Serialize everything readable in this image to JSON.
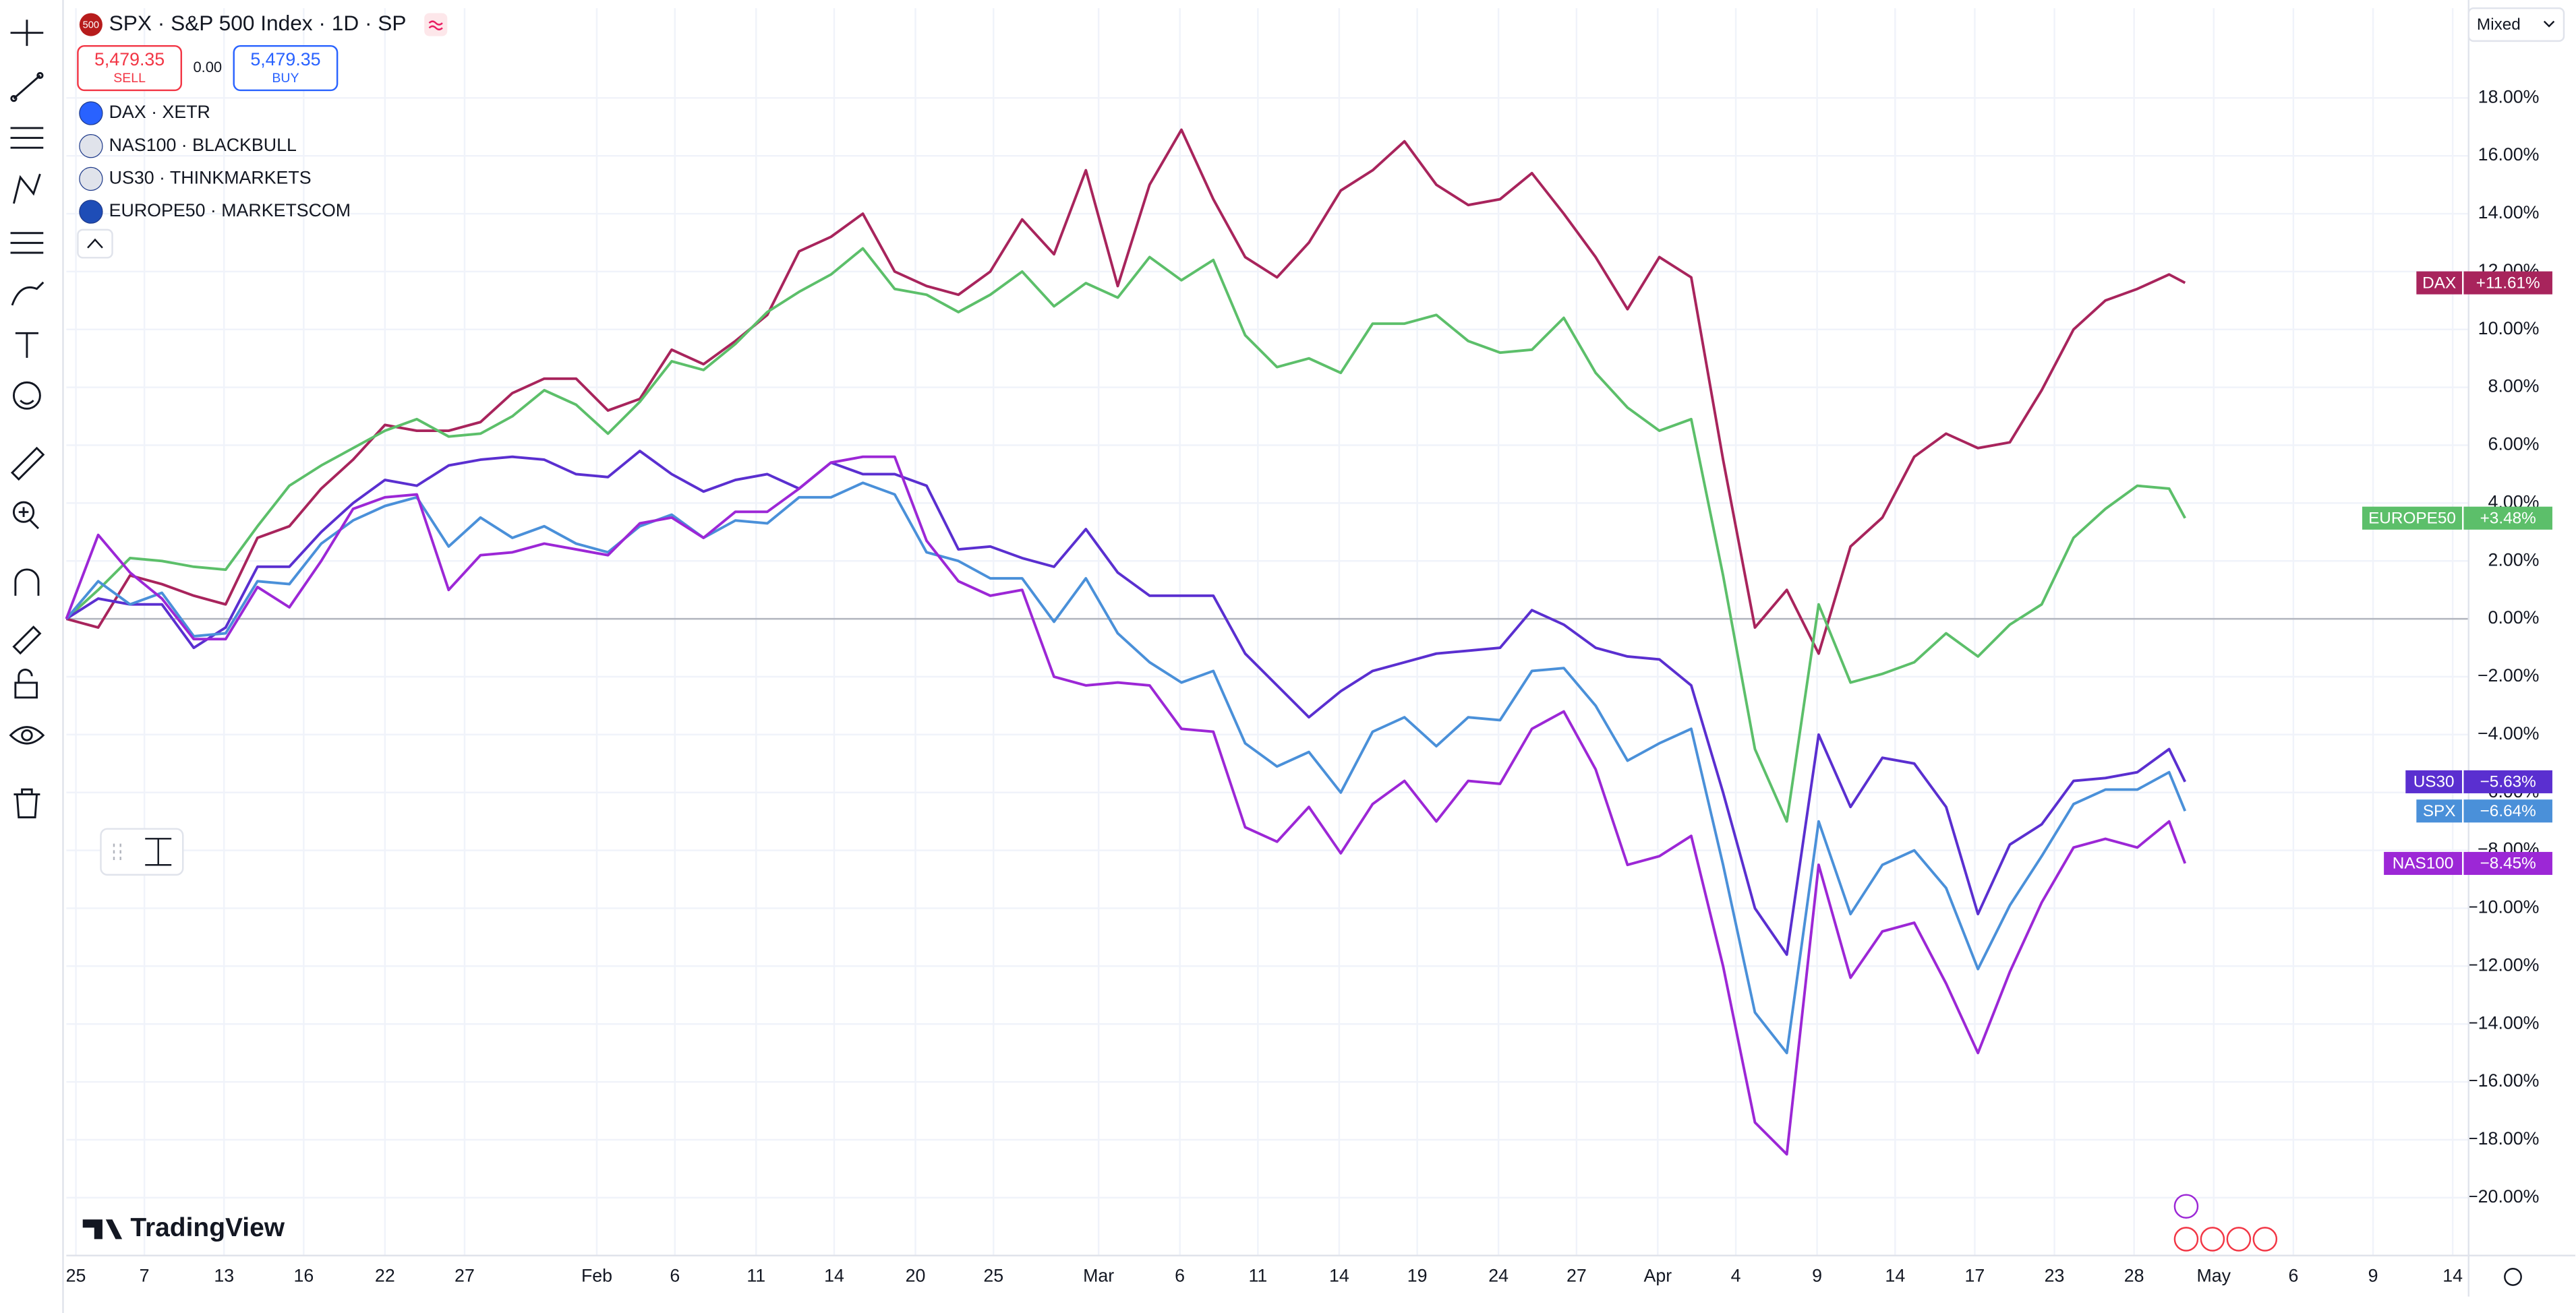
{
  "header": {
    "symbol": "SPX · S&P 500 Index · 1D · SP",
    "badge": "500",
    "sell_price": "5,479.35",
    "sell": "SELL",
    "spread": "0.00",
    "buy_price": "5,479.35",
    "buy": "BUY"
  },
  "legend_items": [
    "DAX · XETR",
    "NAS100 · BLACKBULL",
    "US30 · THINKMARKETS",
    "EUROPE50 · MARKETSCOM"
  ],
  "scale_mode": "Mixed",
  "watermark": "TradingView",
  "chart_data": {
    "type": "line",
    "x": [
      0,
      2,
      4,
      6,
      8,
      10,
      12,
      14,
      16,
      18,
      20,
      22,
      24,
      26,
      28,
      30,
      32,
      34,
      36,
      38,
      40,
      42,
      44,
      46,
      48,
      50,
      52,
      54,
      56,
      58,
      60,
      62,
      64,
      66,
      68,
      70,
      72,
      74,
      76,
      78,
      80,
      82,
      84,
      86,
      88,
      90,
      92,
      94,
      96,
      98,
      100,
      102,
      104,
      106,
      108,
      110,
      112,
      114,
      116,
      118,
      120,
      122,
      124,
      126,
      128,
      130,
      132,
      133
    ],
    "xlim": [
      0,
      150.8
    ],
    "xticks": [
      {
        "value": 0.6,
        "label": "25"
      },
      {
        "value": 4.9,
        "label": "7"
      },
      {
        "value": 9.9,
        "label": "13"
      },
      {
        "value": 14.9,
        "label": "16"
      },
      {
        "value": 20,
        "label": "22"
      },
      {
        "value": 25,
        "label": "27"
      },
      {
        "value": 33.3,
        "label": "Feb"
      },
      {
        "value": 38.2,
        "label": "6"
      },
      {
        "value": 43.3,
        "label": "11"
      },
      {
        "value": 48.2,
        "label": "14"
      },
      {
        "value": 53.3,
        "label": "20"
      },
      {
        "value": 58.2,
        "label": "25"
      },
      {
        "value": 64.8,
        "label": "Mar"
      },
      {
        "value": 69.9,
        "label": "6"
      },
      {
        "value": 74.8,
        "label": "11"
      },
      {
        "value": 79.9,
        "label": "14"
      },
      {
        "value": 84.8,
        "label": "19"
      },
      {
        "value": 89.9,
        "label": "24"
      },
      {
        "value": 94.8,
        "label": "27"
      },
      {
        "value": 99.9,
        "label": "Apr"
      },
      {
        "value": 104.8,
        "label": "4"
      },
      {
        "value": 109.9,
        "label": "9"
      },
      {
        "value": 114.8,
        "label": "14"
      },
      {
        "value": 119.8,
        "label": "17"
      },
      {
        "value": 124.8,
        "label": "23"
      },
      {
        "value": 129.8,
        "label": "28"
      },
      {
        "value": 134.8,
        "label": "May"
      },
      {
        "value": 139.8,
        "label": "6"
      },
      {
        "value": 144.8,
        "label": "9"
      },
      {
        "value": 149.8,
        "label": "14"
      }
    ],
    "ylim": [
      -22,
      21.1
    ],
    "yticks": [
      {
        "value": 18,
        "label": "18.00%"
      },
      {
        "value": 16,
        "label": "16.00%"
      },
      {
        "value": 14,
        "label": "14.00%"
      },
      {
        "value": 12,
        "label": "12.00%"
      },
      {
        "value": 10,
        "label": "10.00%"
      },
      {
        "value": 8,
        "label": "8.00%"
      },
      {
        "value": 6,
        "label": "6.00%"
      },
      {
        "value": 4,
        "label": "4.00%"
      },
      {
        "value": 2,
        "label": "2.00%"
      },
      {
        "value": 0,
        "label": "0.00%"
      },
      {
        "value": -2,
        "label": "−2.00%"
      },
      {
        "value": -4,
        "label": "−4.00%"
      },
      {
        "value": -6,
        "label": "−6.00%"
      },
      {
        "value": -8,
        "label": "−8.00%"
      },
      {
        "value": -10,
        "label": "−10.00%"
      },
      {
        "value": -12,
        "label": "−12.00%"
      },
      {
        "value": -14,
        "label": "−14.00%"
      },
      {
        "value": -16,
        "label": "−16.00%"
      },
      {
        "value": -18,
        "label": "−18.00%"
      },
      {
        "value": -20,
        "label": "−20.00%"
      }
    ],
    "grid": true,
    "series": [
      {
        "name": "DAX",
        "color": "#a8245c",
        "last_label": "+11.61%",
        "values": [
          0,
          -0.3,
          1.5,
          1.2,
          0.8,
          0.5,
          2.8,
          3.2,
          4.5,
          5.5,
          6.7,
          6.5,
          6.5,
          6.8,
          7.8,
          8.3,
          8.3,
          7.2,
          7.6,
          9.3,
          8.8,
          9.6,
          10.5,
          12.7,
          13.2,
          14.0,
          12.0,
          11.5,
          11.2,
          12.0,
          13.8,
          12.6,
          15.5,
          11.5,
          15.0,
          16.9,
          14.5,
          12.5,
          11.8,
          13.0,
          14.8,
          15.5,
          16.5,
          15.0,
          14.3,
          14.5,
          15.4,
          14.0,
          12.5,
          10.7,
          12.5,
          11.8,
          5.5,
          -0.3,
          1.0,
          -1.2,
          2.5,
          3.5,
          5.6,
          6.4,
          5.9,
          6.1,
          7.9,
          10.0,
          11.0,
          11.4,
          11.9,
          11.61
        ]
      },
      {
        "name": "EUROPE50",
        "color": "#5cbf6a",
        "last_label": "+3.48%",
        "values": [
          0,
          1.0,
          2.1,
          2.0,
          1.8,
          1.7,
          3.2,
          4.6,
          5.3,
          5.9,
          6.5,
          6.9,
          6.3,
          6.4,
          7.0,
          7.9,
          7.4,
          6.4,
          7.5,
          8.9,
          8.6,
          9.5,
          10.6,
          11.3,
          11.9,
          12.8,
          11.4,
          11.2,
          10.6,
          11.2,
          12.0,
          10.8,
          11.6,
          11.1,
          12.5,
          11.7,
          12.4,
          9.8,
          8.7,
          9.0,
          8.5,
          10.2,
          10.2,
          10.5,
          9.6,
          9.2,
          9.3,
          10.4,
          8.5,
          7.3,
          6.5,
          6.9,
          1.5,
          -4.5,
          -7.0,
          0.5,
          -2.2,
          -1.9,
          -1.5,
          -0.5,
          -1.3,
          -0.2,
          0.5,
          2.8,
          3.8,
          4.6,
          4.5,
          3.48
        ]
      },
      {
        "name": "US30",
        "color": "#5a2fd0",
        "last_label": "−5.63%",
        "values": [
          0,
          0.7,
          0.5,
          0.5,
          -1.0,
          -0.3,
          1.8,
          1.8,
          3.0,
          4.0,
          4.8,
          4.6,
          5.3,
          5.5,
          5.6,
          5.5,
          5.0,
          4.9,
          5.8,
          5.0,
          4.4,
          4.8,
          5.0,
          4.5,
          5.4,
          5.0,
          5.0,
          4.6,
          2.4,
          2.5,
          2.1,
          1.8,
          3.1,
          1.6,
          0.8,
          0.8,
          0.8,
          -1.2,
          -2.3,
          -3.4,
          -2.5,
          -1.8,
          -1.5,
          -1.2,
          -1.1,
          -1.0,
          0.3,
          -0.2,
          -1.0,
          -1.3,
          -1.4,
          -2.3,
          -6.0,
          -10.0,
          -11.6,
          -4.0,
          -6.5,
          -4.8,
          -5.0,
          -6.5,
          -10.2,
          -7.8,
          -7.1,
          -5.6,
          -5.5,
          -5.3,
          -4.5,
          -5.63
        ]
      },
      {
        "name": "SPX",
        "color": "#4a90d9",
        "last_label": "−6.64%",
        "values": [
          0,
          1.3,
          0.5,
          0.9,
          -0.6,
          -0.5,
          1.3,
          1.2,
          2.6,
          3.4,
          3.9,
          4.2,
          2.5,
          3.5,
          2.8,
          3.2,
          2.6,
          2.3,
          3.2,
          3.6,
          2.8,
          3.4,
          3.3,
          4.2,
          4.2,
          4.7,
          4.3,
          2.3,
          2.0,
          1.4,
          1.4,
          -0.1,
          1.4,
          -0.5,
          -1.5,
          -2.2,
          -1.8,
          -4.3,
          -5.1,
          -4.6,
          -6.0,
          -3.9,
          -3.4,
          -4.4,
          -3.4,
          -3.5,
          -1.8,
          -1.7,
          -3.0,
          -4.9,
          -4.3,
          -3.8,
          -8.5,
          -13.6,
          -15.0,
          -7.0,
          -10.2,
          -8.5,
          -8.0,
          -9.3,
          -12.1,
          -9.9,
          -8.2,
          -6.4,
          -5.9,
          -5.9,
          -5.3,
          -6.64
        ]
      },
      {
        "name": "NAS100",
        "color": "#9c27d6",
        "last_label": "−8.45%",
        "values": [
          0,
          2.9,
          1.6,
          0.7,
          -0.7,
          -0.7,
          1.1,
          0.4,
          2.0,
          3.8,
          4.2,
          4.3,
          1.0,
          2.2,
          2.3,
          2.6,
          2.4,
          2.2,
          3.3,
          3.5,
          2.8,
          3.7,
          3.7,
          4.5,
          5.4,
          5.6,
          5.6,
          2.7,
          1.3,
          0.8,
          1.0,
          -2.0,
          -2.3,
          -2.2,
          -2.3,
          -3.8,
          -3.9,
          -7.2,
          -7.7,
          -6.5,
          -8.1,
          -6.4,
          -5.6,
          -7.0,
          -5.6,
          -5.7,
          -3.8,
          -3.2,
          -5.2,
          -8.5,
          -8.2,
          -7.5,
          -12.0,
          -17.4,
          -18.5,
          -8.5,
          -12.4,
          -10.8,
          -10.5,
          -12.6,
          -15.0,
          -12.2,
          -9.8,
          -7.9,
          -7.6,
          -7.9,
          -7.0,
          -8.45
        ]
      }
    ]
  }
}
